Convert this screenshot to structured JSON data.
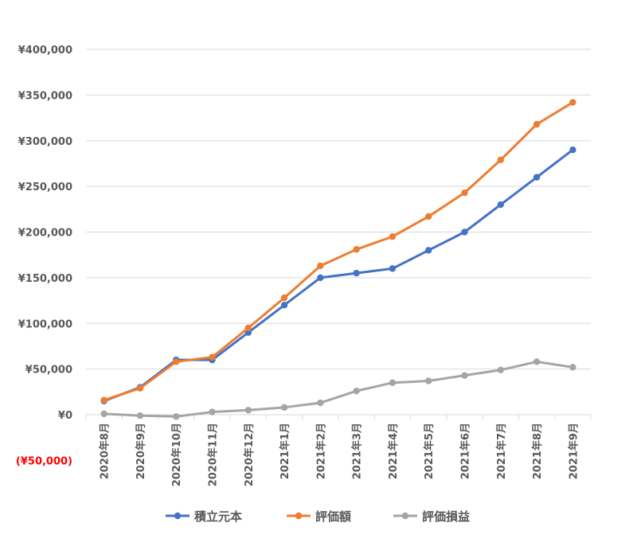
{
  "chart_data": {
    "type": "line",
    "categories": [
      "2020年8月",
      "2020年9月",
      "2020年10月",
      "2020年11月",
      "2020年12月",
      "2021年1月",
      "2021年2月",
      "2021年3月",
      "2021年4月",
      "2021年5月",
      "2021年6月",
      "2021年7月",
      "2021年8月",
      "2021年9月"
    ],
    "series": [
      {
        "name": "積立元本",
        "color": "#4472C4",
        "values": [
          15000,
          30000,
          60000,
          60000,
          90000,
          120000,
          150000,
          155000,
          160000,
          180000,
          200000,
          230000,
          260000,
          290000
        ]
      },
      {
        "name": "評価額",
        "color": "#ED7D31",
        "values": [
          16000,
          29000,
          58000,
          63000,
          95000,
          128000,
          163000,
          181000,
          195000,
          217000,
          243000,
          279000,
          318000,
          342000
        ]
      },
      {
        "name": "評価損益",
        "color": "#A5A5A5",
        "values": [
          1000,
          -1000,
          -2000,
          3000,
          5000,
          8000,
          13000,
          26000,
          35000,
          37000,
          43000,
          49000,
          58000,
          52000
        ]
      }
    ],
    "ylim": [
      -50000,
      400000
    ],
    "y_ticks": [
      {
        "value": 400000,
        "label": "¥400,000"
      },
      {
        "value": 350000,
        "label": "¥350,000"
      },
      {
        "value": 300000,
        "label": "¥300,000"
      },
      {
        "value": 250000,
        "label": "¥250,000"
      },
      {
        "value": 200000,
        "label": "¥200,000"
      },
      {
        "value": 150000,
        "label": "¥150,000"
      },
      {
        "value": 100000,
        "label": "¥100,000"
      },
      {
        "value": 50000,
        "label": "¥50,000"
      },
      {
        "value": 0,
        "label": "¥0"
      },
      {
        "value": -50000,
        "label": "(¥50,000)",
        "color": "#FF0000"
      }
    ],
    "grid": true,
    "legend_position": "bottom",
    "title": "",
    "xlabel": "",
    "ylabel": ""
  }
}
